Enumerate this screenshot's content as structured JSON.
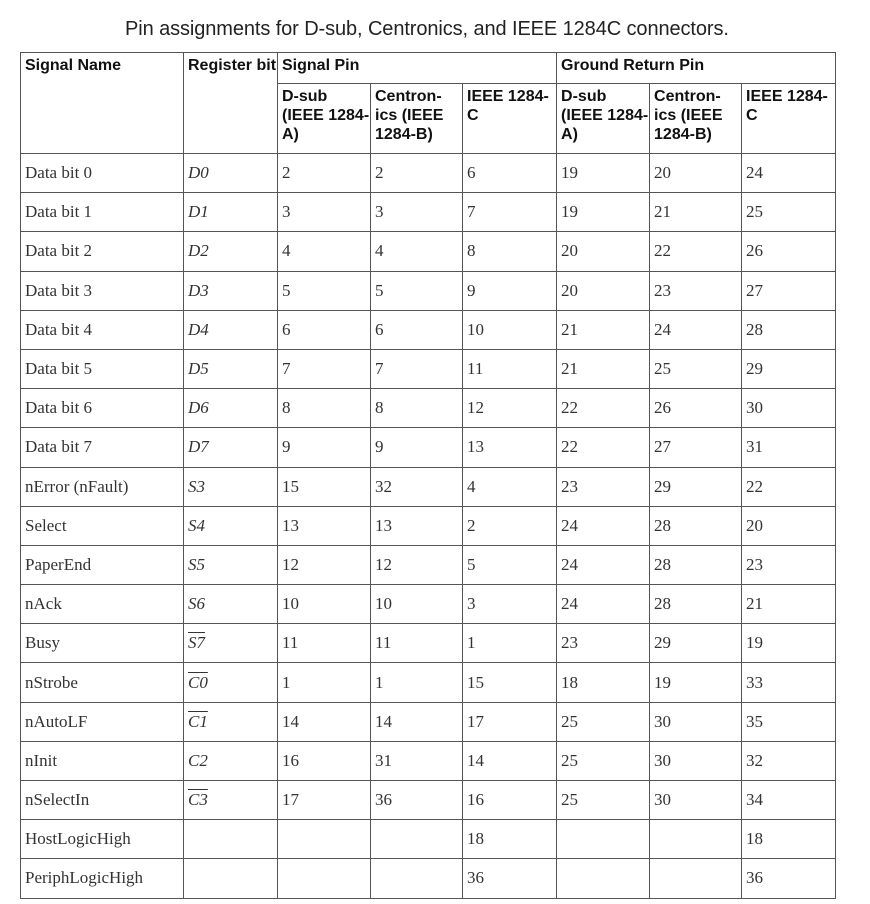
{
  "caption": "Pin assignments for D-sub, Centronics, and IEEE 1284C connectors.",
  "header": {
    "signal_name": "Signal Name",
    "register_bit": "Register bit",
    "signal_pin": "Signal Pin",
    "ground_return_pin": "Ground Return Pin",
    "sub": [
      "D-sub (IEEE 1284-A)",
      "Centron-ics (IEEE 1284-B)",
      "IEEE 1284-C",
      "D-sub (IEEE 1284-A)",
      "Centron-ics (IEEE 1284-B)",
      "IEEE 1284-C"
    ]
  },
  "rows": [
    {
      "name": "Data bit 0",
      "bit": "D0",
      "inverted": false,
      "pins": [
        "2",
        "2",
        "6",
        "19",
        "20",
        "24"
      ]
    },
    {
      "name": "Data bit 1",
      "bit": "D1",
      "inverted": false,
      "pins": [
        "3",
        "3",
        "7",
        "19",
        "21",
        "25"
      ]
    },
    {
      "name": "Data bit 2",
      "bit": "D2",
      "inverted": false,
      "pins": [
        "4",
        "4",
        "8",
        "20",
        "22",
        "26"
      ]
    },
    {
      "name": "Data bit 3",
      "bit": "D3",
      "inverted": false,
      "pins": [
        "5",
        "5",
        "9",
        "20",
        "23",
        "27"
      ]
    },
    {
      "name": "Data bit 4",
      "bit": "D4",
      "inverted": false,
      "pins": [
        "6",
        "6",
        "10",
        "21",
        "24",
        "28"
      ]
    },
    {
      "name": "Data bit 5",
      "bit": "D5",
      "inverted": false,
      "pins": [
        "7",
        "7",
        "11",
        "21",
        "25",
        "29"
      ]
    },
    {
      "name": "Data bit 6",
      "bit": "D6",
      "inverted": false,
      "pins": [
        "8",
        "8",
        "12",
        "22",
        "26",
        "30"
      ]
    },
    {
      "name": "Data bit 7",
      "bit": "D7",
      "inverted": false,
      "pins": [
        "9",
        "9",
        "13",
        "22",
        "27",
        "31"
      ]
    },
    {
      "name": "nError (nFault)",
      "bit": "S3",
      "inverted": false,
      "pins": [
        "15",
        "32",
        "4",
        "23",
        "29",
        "22"
      ]
    },
    {
      "name": "Select",
      "bit": "S4",
      "inverted": false,
      "pins": [
        "13",
        "13",
        "2",
        "24",
        "28",
        "20"
      ]
    },
    {
      "name": "PaperEnd",
      "bit": "S5",
      "inverted": false,
      "pins": [
        "12",
        "12",
        "5",
        "24",
        "28",
        "23"
      ]
    },
    {
      "name": "nAck",
      "bit": "S6",
      "inverted": false,
      "pins": [
        "10",
        "10",
        "3",
        "24",
        "28",
        "21"
      ]
    },
    {
      "name": "Busy",
      "bit": "S7",
      "inverted": true,
      "pins": [
        "11",
        "11",
        "1",
        "23",
        "29",
        "19"
      ]
    },
    {
      "name": "nStrobe",
      "bit": "C0",
      "inverted": true,
      "pins": [
        "1",
        "1",
        "15",
        "18",
        "19",
        "33"
      ]
    },
    {
      "name": "nAutoLF",
      "bit": "C1",
      "inverted": true,
      "pins": [
        "14",
        "14",
        "17",
        "25",
        "30",
        "35"
      ]
    },
    {
      "name": "nInit",
      "bit": "C2",
      "inverted": false,
      "pins": [
        "16",
        "31",
        "14",
        "25",
        "30",
        "32"
      ]
    },
    {
      "name": "nSelectIn",
      "bit": "C3",
      "inverted": true,
      "pins": [
        "17",
        "36",
        "16",
        "25",
        "30",
        "34"
      ]
    },
    {
      "name": "HostLogicHigh",
      "bit": "",
      "inverted": false,
      "pins": [
        "",
        "",
        "18",
        "",
        "",
        "18"
      ]
    },
    {
      "name": "PeriphLogicHigh",
      "bit": "",
      "inverted": false,
      "pins": [
        "",
        "",
        "36",
        "",
        "",
        "36"
      ]
    }
  ]
}
